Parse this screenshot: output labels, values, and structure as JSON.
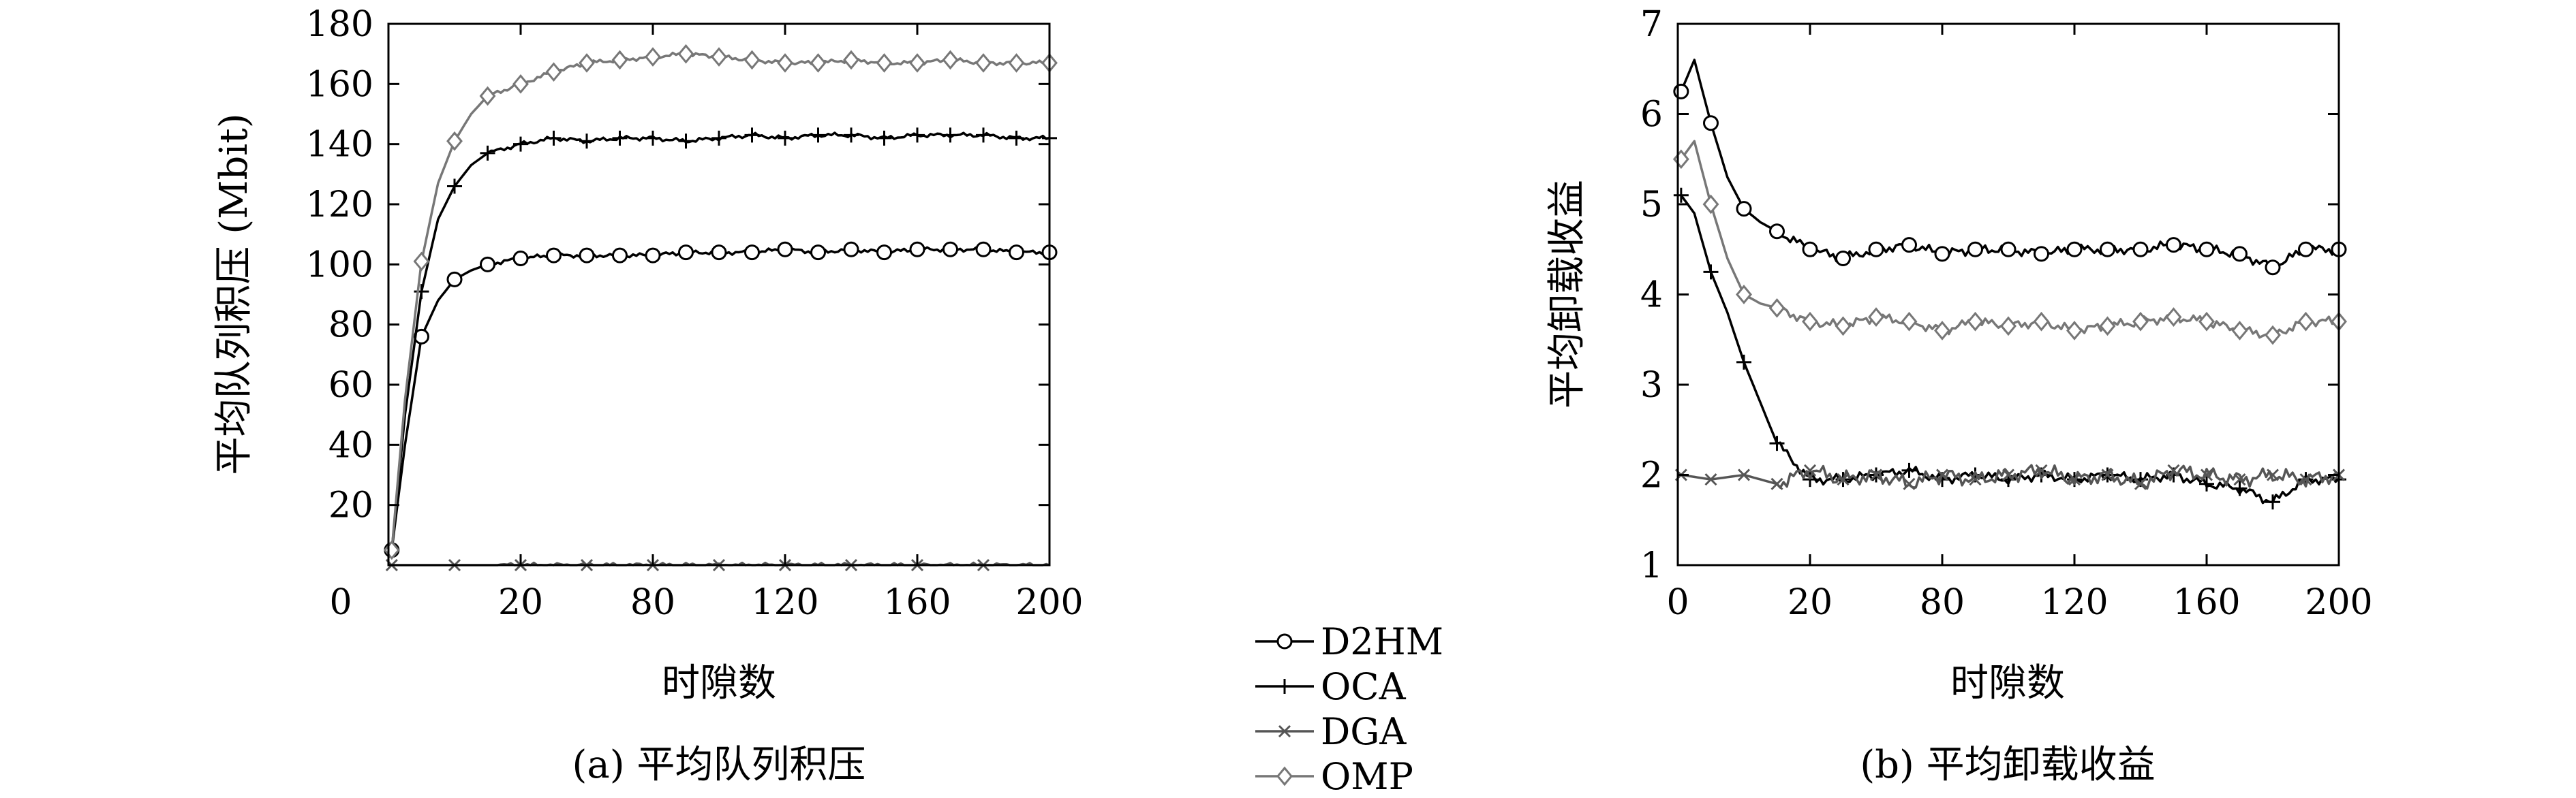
{
  "chart_data": [
    {
      "type": "line",
      "ylabel": "平均队列积压 (Mbit)",
      "xlabel": "时隙数",
      "caption": "(a) 平均队列积压",
      "xlim": [
        0,
        200
      ],
      "ylim": [
        0,
        180
      ],
      "xtick_labels": [
        "0",
        "20",
        "80",
        "120",
        "160",
        "200"
      ],
      "ytick_labels": [
        "20",
        "40",
        "60",
        "80",
        "100",
        "120",
        "140",
        "160",
        "180"
      ],
      "grid": false,
      "series": [
        {
          "name": "D2HM",
          "color": "#000000",
          "marker": "circle",
          "x": [
            1,
            5,
            10,
            15,
            20,
            25,
            30,
            40,
            50,
            60,
            70,
            80,
            90,
            100,
            110,
            120,
            130,
            140,
            150,
            160,
            170,
            180,
            190,
            200
          ],
          "y": [
            5,
            40,
            76,
            88,
            95,
            98,
            100,
            102,
            103,
            103,
            103,
            103,
            104,
            104,
            104,
            105,
            104,
            105,
            104,
            105,
            105,
            105,
            104,
            104
          ]
        },
        {
          "name": "OCA",
          "color": "#000000",
          "marker": "plus",
          "x": [
            1,
            5,
            10,
            15,
            20,
            25,
            30,
            40,
            50,
            60,
            70,
            80,
            90,
            100,
            110,
            120,
            130,
            140,
            150,
            160,
            170,
            180,
            190,
            200
          ],
          "y": [
            5,
            50,
            91,
            115,
            126,
            133,
            137,
            140,
            142,
            141,
            142,
            142,
            141,
            142,
            143,
            142,
            143,
            143,
            142,
            143,
            143,
            143,
            142,
            142
          ]
        },
        {
          "name": "DGA",
          "color": "#555555",
          "marker": "x",
          "x": [
            1,
            20,
            40,
            60,
            80,
            100,
            120,
            140,
            160,
            180,
            200
          ],
          "y": [
            0,
            0,
            0,
            0,
            0,
            0,
            0,
            0,
            0,
            0,
            0
          ]
        },
        {
          "name": "OMP",
          "color": "#777777",
          "marker": "diamond",
          "x": [
            1,
            5,
            10,
            15,
            20,
            25,
            30,
            40,
            50,
            60,
            70,
            80,
            90,
            100,
            110,
            120,
            130,
            140,
            150,
            160,
            170,
            180,
            190,
            200
          ],
          "y": [
            5,
            55,
            101,
            127,
            141,
            150,
            156,
            160,
            164,
            167,
            168,
            169,
            170,
            169,
            168,
            167,
            167,
            168,
            167,
            167,
            168,
            167,
            167,
            167
          ]
        }
      ],
      "marker_x": {
        "D2HM": [
          1,
          10,
          20,
          30,
          40,
          50,
          60,
          70,
          80,
          90,
          100,
          110,
          120,
          130,
          140,
          150,
          160,
          170,
          180,
          190,
          200
        ],
        "OCA": [
          1,
          10,
          20,
          30,
          40,
          50,
          60,
          70,
          80,
          90,
          100,
          110,
          120,
          130,
          140,
          150,
          160,
          170,
          180,
          190,
          200
        ],
        "DGA": [
          1,
          20,
          40,
          60,
          80,
          100,
          120,
          140,
          160,
          180
        ],
        "OMP": [
          1,
          10,
          20,
          30,
          40,
          50,
          60,
          70,
          80,
          90,
          100,
          110,
          120,
          130,
          140,
          150,
          160,
          170,
          180,
          190,
          200
        ]
      }
    },
    {
      "type": "line",
      "ylabel": "平均卸载收益",
      "xlabel": "时隙数",
      "caption": "(b) 平均卸载收益",
      "xlim": [
        0,
        200
      ],
      "ylim": [
        1,
        7
      ],
      "xtick_labels": [
        "0",
        "20",
        "80",
        "120",
        "160",
        "200"
      ],
      "ytick_labels": [
        "1",
        "2",
        "3",
        "4",
        "5",
        "6",
        "7"
      ],
      "grid": false,
      "series": [
        {
          "name": "D2HM",
          "color": "#000000",
          "marker": "circle",
          "x": [
            1,
            5,
            10,
            15,
            20,
            25,
            30,
            40,
            50,
            60,
            70,
            80,
            90,
            100,
            110,
            120,
            130,
            140,
            150,
            160,
            170,
            180,
            190,
            200
          ],
          "y": [
            6.25,
            6.6,
            5.9,
            5.3,
            4.95,
            4.8,
            4.7,
            4.5,
            4.4,
            4.5,
            4.55,
            4.45,
            4.5,
            4.5,
            4.45,
            4.5,
            4.5,
            4.5,
            4.55,
            4.5,
            4.45,
            4.3,
            4.5,
            4.5
          ]
        },
        {
          "name": "OCA",
          "color": "#000000",
          "marker": "plus",
          "x": [
            1,
            5,
            10,
            15,
            20,
            25,
            30,
            40,
            50,
            60,
            70,
            80,
            90,
            100,
            110,
            120,
            130,
            140,
            150,
            160,
            170,
            180,
            190,
            200
          ],
          "y": [
            5.1,
            4.9,
            4.25,
            3.8,
            3.25,
            2.8,
            2.35,
            1.95,
            1.95,
            2.0,
            2.05,
            1.95,
            2.0,
            1.95,
            2.0,
            1.95,
            2.0,
            1.95,
            2.0,
            1.9,
            1.85,
            1.7,
            1.95,
            1.95
          ]
        },
        {
          "name": "DGA",
          "color": "#555555",
          "marker": "x",
          "x": [
            1,
            10,
            20,
            30,
            40,
            50,
            60,
            70,
            80,
            90,
            100,
            110,
            120,
            130,
            140,
            150,
            160,
            170,
            180,
            190,
            200
          ],
          "y": [
            2.0,
            1.95,
            2.0,
            1.9,
            2.05,
            1.95,
            2.0,
            1.9,
            2.0,
            1.95,
            2.0,
            2.05,
            1.95,
            2.0,
            1.9,
            2.05,
            2.0,
            1.95,
            2.0,
            1.95,
            2.0
          ]
        },
        {
          "name": "OMP",
          "color": "#777777",
          "marker": "diamond",
          "x": [
            1,
            5,
            10,
            15,
            20,
            25,
            30,
            40,
            50,
            60,
            70,
            80,
            90,
            100,
            110,
            120,
            130,
            140,
            150,
            160,
            170,
            180,
            190,
            200
          ],
          "y": [
            5.5,
            5.7,
            5.0,
            4.4,
            4.0,
            3.9,
            3.85,
            3.7,
            3.65,
            3.75,
            3.7,
            3.6,
            3.7,
            3.65,
            3.7,
            3.6,
            3.65,
            3.7,
            3.75,
            3.7,
            3.6,
            3.55,
            3.7,
            3.7
          ]
        }
      ],
      "marker_x": {
        "D2HM": [
          1,
          10,
          20,
          30,
          40,
          50,
          60,
          70,
          80,
          90,
          100,
          110,
          120,
          130,
          140,
          150,
          160,
          170,
          180,
          190,
          200
        ],
        "OCA": [
          1,
          10,
          20,
          30,
          40,
          50,
          60,
          70,
          80,
          90,
          100,
          110,
          120,
          130,
          140,
          150,
          160,
          170,
          180,
          190,
          200
        ],
        "DGA": [
          1,
          10,
          20,
          30,
          40,
          50,
          60,
          70,
          80,
          90,
          100,
          110,
          120,
          130,
          140,
          150,
          160,
          170,
          180,
          190,
          200
        ],
        "OMP": [
          1,
          10,
          20,
          30,
          40,
          50,
          60,
          70,
          80,
          90,
          100,
          110,
          120,
          130,
          140,
          150,
          160,
          170,
          180,
          190,
          200
        ]
      }
    }
  ],
  "legend": {
    "placement": "between-panels",
    "entries": [
      {
        "label": "D2HM",
        "marker": "circle",
        "color": "#000000"
      },
      {
        "label": "OCA",
        "marker": "plus",
        "color": "#000000"
      },
      {
        "label": "DGA",
        "marker": "x",
        "color": "#555555"
      },
      {
        "label": "OMP",
        "marker": "diamond",
        "color": "#777777"
      }
    ]
  }
}
